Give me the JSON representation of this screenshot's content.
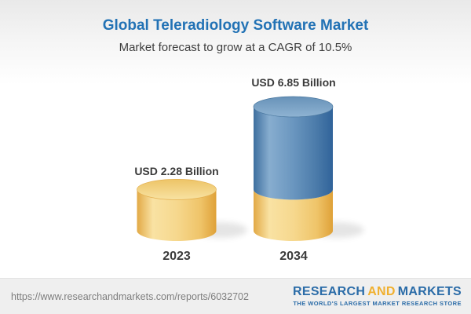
{
  "header": {
    "title": "Global Teleradiology Software Market",
    "subtitle": "Market forecast to grow at a CAGR of 10.5%"
  },
  "chart_data": {
    "type": "bar",
    "variant": "3d-cylinder",
    "title": "Global Teleradiology Software Market",
    "subtitle": "Market forecast to grow at a CAGR of 10.5%",
    "cagr": "10.5%",
    "units": "USD Billion",
    "categories": [
      "2023",
      "2034"
    ],
    "values": [
      2.28,
      6.85
    ],
    "value_labels": [
      "USD 2.28 Billion",
      "USD 6.85 Billion"
    ],
    "legend": "none",
    "grid": false,
    "notes": "2034 cylinder shows the 2023 value as a yellow base segment with a blue growth segment stacked above",
    "colors": {
      "base_segment_yellow": "#F6D88E",
      "growth_segment_blue": "#6A96BF",
      "title_blue": "#2272B5",
      "label_gray": "#3B3B3B"
    }
  },
  "footer": {
    "url": "https://www.researchandmarkets.com/reports/6032702",
    "logo": {
      "part1": "RESEARCH",
      "part2": "AND",
      "part3": "MARKETS",
      "tagline": "THE WORLD'S LARGEST MARKET RESEARCH STORE",
      "blue": "#2B6CA8",
      "gold": "#F0B02F"
    }
  }
}
